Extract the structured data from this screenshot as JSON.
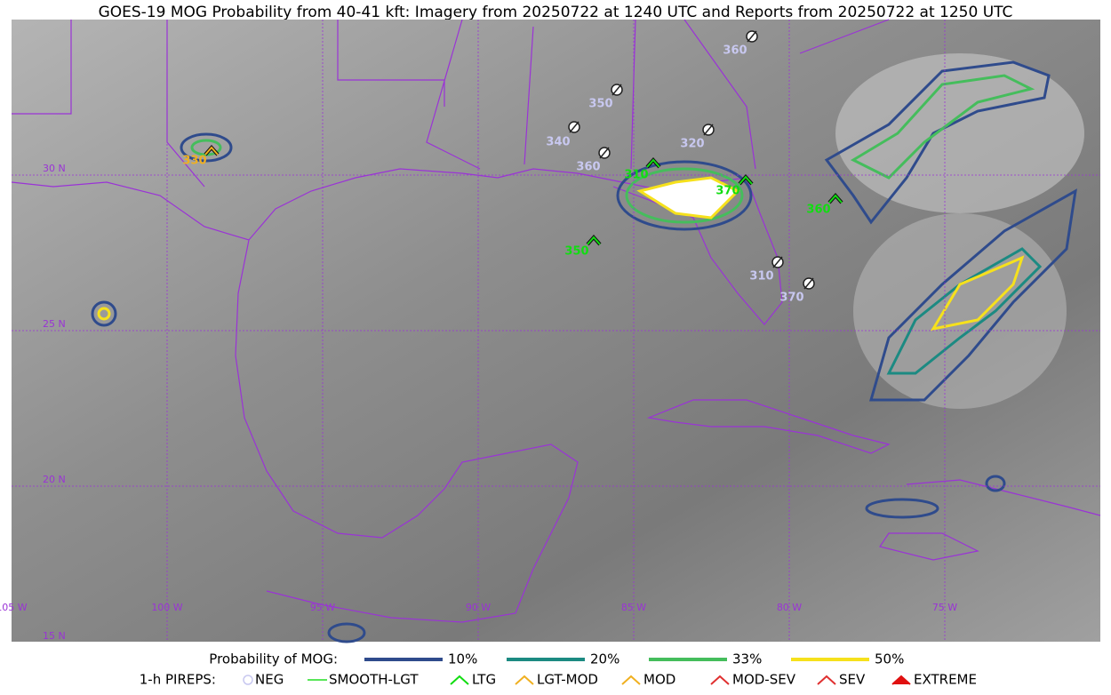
{
  "title": "GOES-19 MOG Probability from 40-41 kft: Imagery from 20250722 at 1240 UTC and Reports from 20250722 at 1250 UTC",
  "map": {
    "lat_labels": [
      "30 N",
      "25 N",
      "20 N",
      "15 N"
    ],
    "lon_labels": [
      "105 W",
      "100 W",
      "95 W",
      "90 W",
      "85 W",
      "80 W",
      "75 W"
    ],
    "pireps": [
      {
        "label": "360",
        "kind": "NEG"
      },
      {
        "label": "350",
        "kind": "NEG"
      },
      {
        "label": "340",
        "kind": "NEG"
      },
      {
        "label": "360",
        "kind": "NEG"
      },
      {
        "label": "320",
        "kind": "NEG"
      },
      {
        "label": "310",
        "kind": "NEG"
      },
      {
        "label": "370",
        "kind": "NEG"
      },
      {
        "label": "310",
        "kind": "LTG"
      },
      {
        "label": "370",
        "kind": "LTG"
      },
      {
        "label": "360",
        "kind": "LTG"
      },
      {
        "label": "350",
        "kind": "LTG"
      },
      {
        "label": "330",
        "kind": "LGT-MOD"
      }
    ]
  },
  "legend": {
    "probability": {
      "title": "Probability of MOG:",
      "items": [
        {
          "label": "10%",
          "color": "#2f4b8c"
        },
        {
          "label": "20%",
          "color": "#1c8a82"
        },
        {
          "label": "33%",
          "color": "#45bd5c"
        },
        {
          "label": "50%",
          "color": "#f6e11c"
        }
      ]
    },
    "pireps": {
      "title": "1-h PIREPS:",
      "items": [
        {
          "label": "NEG",
          "color": "#c8c8f0"
        },
        {
          "label": "SMOOTH-LGT",
          "color": "#22dd22"
        },
        {
          "label": "LTG",
          "color": "#11dd11"
        },
        {
          "label": "LGT-MOD",
          "color": "#f0b020"
        },
        {
          "label": "MOD",
          "color": "#f0b020"
        },
        {
          "label": "MOD-SEV",
          "color": "#e03030"
        },
        {
          "label": "SEV",
          "color": "#e03030"
        },
        {
          "label": "EXTREME",
          "color": "#e01010"
        }
      ]
    }
  }
}
